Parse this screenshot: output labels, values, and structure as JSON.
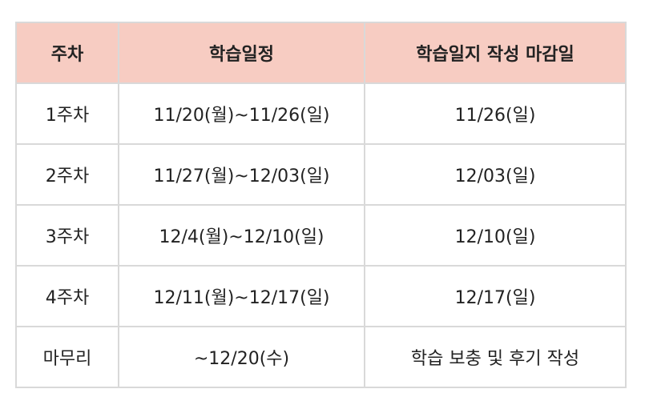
{
  "table": {
    "headers": [
      "주차",
      "학습일정",
      "학습일지 작성 마감일"
    ],
    "rows": [
      [
        "1주차",
        "11/20(월)~11/26(일)",
        "11/26(일)"
      ],
      [
        "2주차",
        "11/27(월)~12/03(일)",
        "12/03(일)"
      ],
      [
        "3주차",
        "12/4(월)~12/10(일)",
        "12/10(일)"
      ],
      [
        "4주차",
        "12/11(월)~12/17(일)",
        "12/17(일)"
      ],
      [
        "마무리",
        "~12/20(수)",
        "학습 보충 및 후기 작성"
      ]
    ],
    "colors": {
      "header_background": "#f7ccc2",
      "border": "#d9d9d9",
      "text": "#222222"
    }
  }
}
